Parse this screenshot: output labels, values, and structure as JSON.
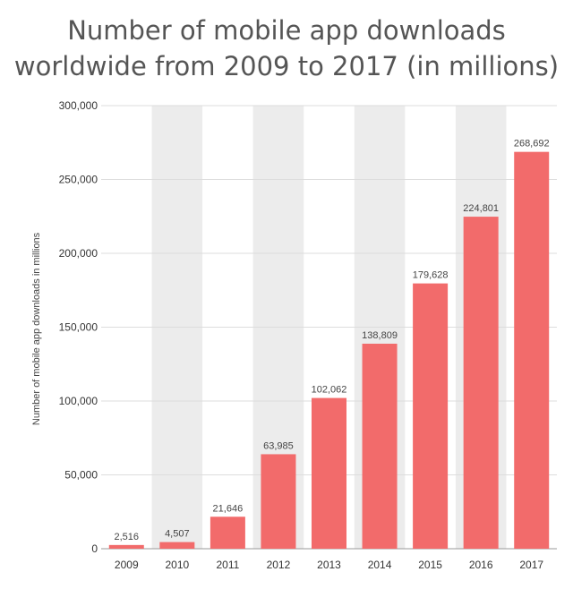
{
  "chart_data": {
    "type": "bar",
    "title_lines": [
      "Number of mobile app downloads",
      "worldwide from 2009 to 2017 (in millions)"
    ],
    "xlabel": "",
    "ylabel": "Number of mobile app downloads in millions",
    "categories": [
      "2009",
      "2010",
      "2011",
      "2012",
      "2013",
      "2014",
      "2015",
      "2016",
      "2017"
    ],
    "values": [
      2516,
      4507,
      21646,
      63985,
      102062,
      138809,
      179628,
      224801,
      268692
    ],
    "data_labels": [
      "2,516",
      "4,507",
      "21,646",
      "63,985",
      "102,062",
      "138,809",
      "179,628",
      "224,801",
      "268,692"
    ],
    "ylim": [
      0,
      300000
    ],
    "yticks": [
      0,
      50000,
      100000,
      150000,
      200000,
      250000,
      300000
    ],
    "ytick_labels": [
      "0",
      "50,000",
      "100,000",
      "150,000",
      "200,000",
      "250,000",
      "300,000"
    ],
    "grid": true,
    "bar_color": "#f26b6b",
    "band_color": "#ececec",
    "grid_color": "#dddddd"
  }
}
